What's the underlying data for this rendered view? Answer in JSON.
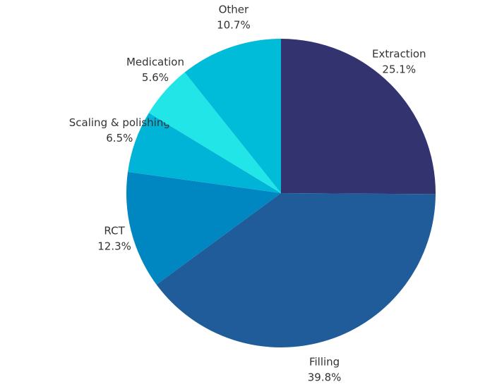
{
  "chart_data": {
    "type": "pie",
    "categories": [
      "Extraction",
      "Filling",
      "RCT",
      "Scaling & polishing",
      "Medication",
      "Other"
    ],
    "values": [
      25.1,
      39.8,
      12.3,
      6.5,
      5.6,
      10.7
    ],
    "value_labels": [
      "25.1%",
      "39.8%",
      "12.3%",
      "6.5%",
      "5.6%",
      "10.7%"
    ],
    "colors": [
      "#333370",
      "#1f5c99",
      "#0086c0",
      "#00b4d8",
      "#22e5e8",
      "#00bcd9"
    ]
  }
}
